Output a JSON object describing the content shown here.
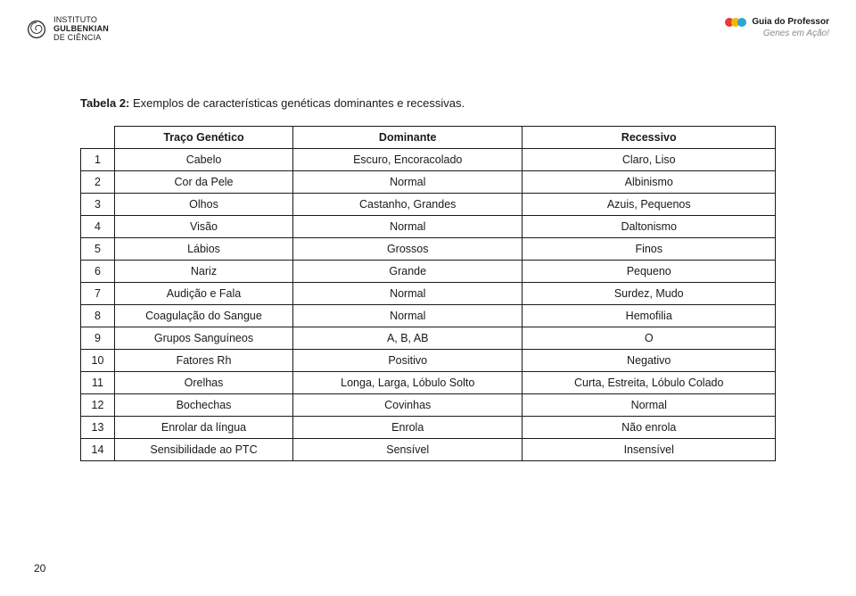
{
  "logo": {
    "line1": "INSTITUTO",
    "line2": "GULBENKIAN",
    "line3": "DE CIÊNCIA"
  },
  "guide": {
    "title": "Guia do Professor",
    "subtitle": "Genes em Ação!",
    "dot_colors": [
      "#e63b2e",
      "#f5b800",
      "#2aa6d6"
    ]
  },
  "caption": {
    "bold": "Tabela 2:",
    "rest": " Exemplos de características genéticas dominantes e recessivas."
  },
  "table": {
    "headers": [
      "Traço Genético",
      "Dominante",
      "Recessivo"
    ],
    "rows": [
      [
        "1",
        "Cabelo",
        "Escuro, Encoracolado",
        "Claro, Liso"
      ],
      [
        "2",
        "Cor da Pele",
        "Normal",
        "Albinismo"
      ],
      [
        "3",
        "Olhos",
        "Castanho, Grandes",
        "Azuis, Pequenos"
      ],
      [
        "4",
        "Visão",
        "Normal",
        "Daltonismo"
      ],
      [
        "5",
        "Lábios",
        "Grossos",
        "Finos"
      ],
      [
        "6",
        "Nariz",
        "Grande",
        "Pequeno"
      ],
      [
        "7",
        "Audição e Fala",
        "Normal",
        "Surdez, Mudo"
      ],
      [
        "8",
        "Coagulação do Sangue",
        "Normal",
        "Hemofilia"
      ],
      [
        "9",
        "Grupos Sanguíneos",
        "A, B, AB",
        "O"
      ],
      [
        "10",
        "Fatores Rh",
        "Positivo",
        "Negativo"
      ],
      [
        "11",
        "Orelhas",
        "Longa, Larga, Lóbulo Solto",
        "Curta, Estreita, Lóbulo Colado"
      ],
      [
        "12",
        "Bochechas",
        "Covinhas",
        "Normal"
      ],
      [
        "13",
        "Enrolar da língua",
        "Enrola",
        "Não enrola"
      ],
      [
        "14",
        "Sensibilidade ao PTC",
        "Sensível",
        "Insensível"
      ]
    ]
  },
  "page_number": "20"
}
